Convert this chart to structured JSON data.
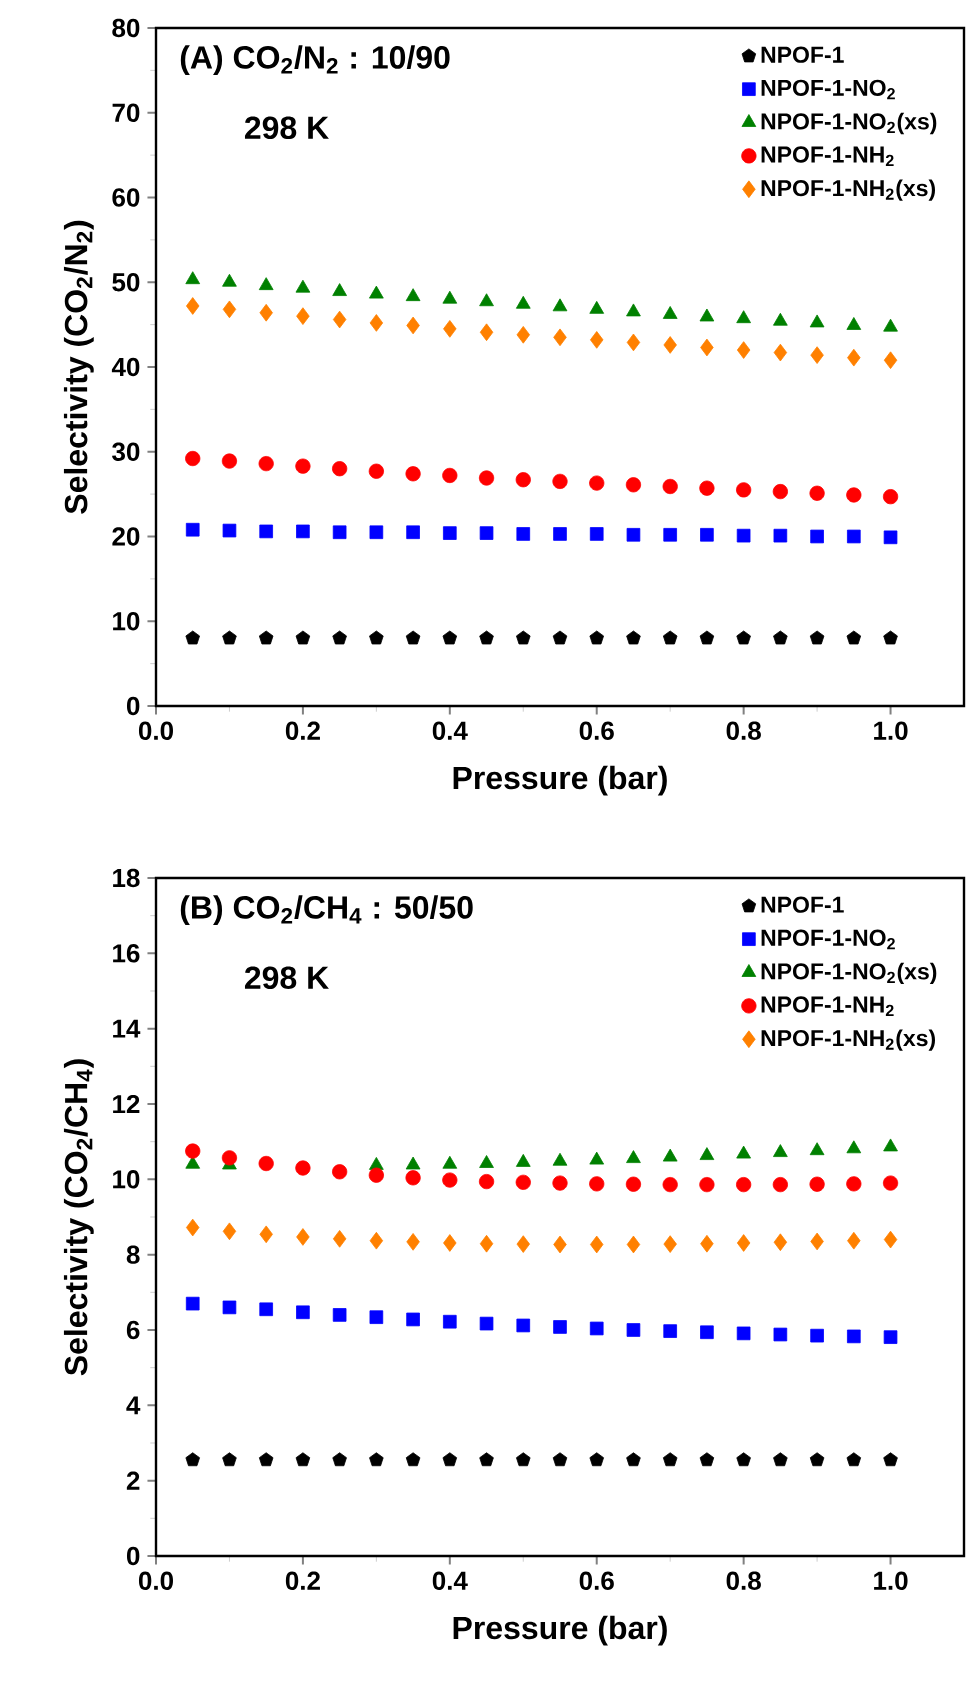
{
  "chart_data": [
    {
      "type": "scatter",
      "title": "(A)  CO$_{2}$/N$_{2}$ : 10/90",
      "annotations": [
        "298 K"
      ],
      "xlabel": "Pressure (bar)",
      "ylabel": "Selectivity (CO$_{2}$/N$_{2}$)",
      "x": [
        0.05,
        0.1,
        0.15,
        0.2,
        0.25,
        0.3,
        0.35,
        0.4,
        0.45,
        0.5,
        0.55,
        0.6,
        0.65,
        0.7,
        0.75,
        0.8,
        0.85,
        0.9,
        0.95,
        1.0
      ],
      "xlim": [
        0,
        1.1
      ],
      "xticks": [
        {
          "value": 0,
          "label": "0.0"
        },
        {
          "value": 0.2,
          "label": "0.2"
        },
        {
          "value": 0.4,
          "label": "0.4"
        },
        {
          "value": 0.6,
          "label": "0.6"
        },
        {
          "value": 0.8,
          "label": "0.8"
        },
        {
          "value": 1,
          "label": "1.0"
        }
      ],
      "ylim": [
        0,
        80
      ],
      "yticks": [
        0,
        10,
        20,
        30,
        40,
        50,
        60,
        70,
        80
      ],
      "legend": "top right",
      "grid": false,
      "series": [
        {
          "name": "NPOF-1",
          "color": "#000000",
          "values": [
            8,
            8,
            8,
            8,
            8,
            8,
            8,
            8,
            8,
            8,
            8,
            8,
            8,
            8,
            8,
            8,
            8,
            8,
            8,
            8
          ]
        },
        {
          "name": "NPOF-1-NO$_{2}$",
          "color": "#0000ff",
          "marker": "square",
          "values": [
            20.8,
            20.7,
            20.6,
            20.6,
            20.5,
            20.5,
            20.5,
            20.4,
            20.4,
            20.3,
            20.3,
            20.3,
            20.2,
            20.2,
            20.2,
            20.1,
            20.1,
            20.0,
            20.0,
            19.9
          ]
        },
        {
          "name": "NPOF-1-NO$_{2}$(xs)",
          "color": "#008000",
          "marker": "triangle",
          "values": [
            50.3,
            50.0,
            49.6,
            49.3,
            48.9,
            48.6,
            48.3,
            48.0,
            47.7,
            47.4,
            47.1,
            46.8,
            46.5,
            46.2,
            45.9,
            45.7,
            45.4,
            45.2,
            44.9,
            44.7
          ]
        },
        {
          "name": "NPOF-1-NH$_{2}$",
          "color": "#ff0000",
          "marker": "circle",
          "values": [
            29.2,
            28.9,
            28.6,
            28.3,
            28.0,
            27.7,
            27.4,
            27.2,
            26.9,
            26.7,
            26.5,
            26.3,
            26.1,
            25.9,
            25.7,
            25.5,
            25.3,
            25.1,
            24.9,
            24.7
          ]
        },
        {
          "name": "NPOF-1-NH$_{2}$(xs)",
          "color": "#ff8000",
          "marker": "diamond",
          "values": [
            47.2,
            46.8,
            46.4,
            46.0,
            45.6,
            45.2,
            44.9,
            44.5,
            44.1,
            43.8,
            43.5,
            43.2,
            42.9,
            42.6,
            42.3,
            42.0,
            41.7,
            41.4,
            41.1,
            40.8
          ]
        }
      ]
    },
    {
      "type": "scatter",
      "title": "(B)  CO$_{2}$/CH$_{4}$ : 50/50",
      "annotations": [
        "298 K"
      ],
      "xlabel": "Pressure (bar)",
      "ylabel": "Selectivity (CO$_{2}$/CH$_{4}$)",
      "x": [
        0.05,
        0.1,
        0.15,
        0.2,
        0.25,
        0.3,
        0.35,
        0.4,
        0.45,
        0.5,
        0.55,
        0.6,
        0.65,
        0.7,
        0.75,
        0.8,
        0.85,
        0.9,
        0.95,
        1.0
      ],
      "xlim": [
        0,
        1.1
      ],
      "xticks": [
        {
          "value": 0,
          "label": "0.0"
        },
        {
          "value": 0.2,
          "label": "0.2"
        },
        {
          "value": 0.4,
          "label": "0.4"
        },
        {
          "value": 0.6,
          "label": "0.6"
        },
        {
          "value": 0.8,
          "label": "0.8"
        },
        {
          "value": 1,
          "label": "1.0"
        }
      ],
      "ylim": [
        0,
        18
      ],
      "yticks": [
        0,
        2,
        4,
        6,
        8,
        10,
        12,
        14,
        16,
        18
      ],
      "legend": "top right",
      "grid": false,
      "series": [
        {
          "name": "NPOF-1",
          "color": "#000000",
          "values": [
            2.55,
            2.55,
            2.55,
            2.55,
            2.55,
            2.55,
            2.55,
            2.55,
            2.55,
            2.55,
            2.55,
            2.55,
            2.55,
            2.55,
            2.55,
            2.55,
            2.55,
            2.55,
            2.55,
            2.55
          ]
        },
        {
          "name": "NPOF-1-NO$_{2}$",
          "color": "#0000ff",
          "marker": "square",
          "values": [
            6.7,
            6.6,
            6.55,
            6.47,
            6.4,
            6.34,
            6.28,
            6.22,
            6.17,
            6.12,
            6.08,
            6.04,
            6.0,
            5.97,
            5.94,
            5.91,
            5.88,
            5.85,
            5.83,
            5.81
          ]
        },
        {
          "name": "NPOF-1-NO$_{2}$(xs)",
          "color": "#008000",
          "marker": "triangle",
          "values": [
            10.4,
            10.38,
            null,
            null,
            null,
            10.37,
            10.38,
            10.4,
            10.42,
            10.45,
            10.48,
            10.51,
            10.55,
            10.59,
            10.63,
            10.67,
            10.71,
            10.76,
            10.81,
            10.86
          ]
        },
        {
          "name": "NPOF-1-NH$_{2}$",
          "color": "#ff0000",
          "marker": "circle",
          "values": [
            10.75,
            10.57,
            10.42,
            10.3,
            10.2,
            10.11,
            10.04,
            9.98,
            9.94,
            9.92,
            9.9,
            9.88,
            9.87,
            9.86,
            9.86,
            9.86,
            9.86,
            9.87,
            9.88,
            9.9
          ]
        },
        {
          "name": "NPOF-1-NH$_{2}$(xs)",
          "color": "#ff8000",
          "marker": "diamond",
          "values": [
            8.72,
            8.62,
            8.54,
            8.47,
            8.42,
            8.37,
            8.34,
            8.31,
            8.29,
            8.28,
            8.27,
            8.27,
            8.27,
            8.28,
            8.29,
            8.31,
            8.33,
            8.35,
            8.37,
            8.4
          ]
        }
      ]
    }
  ]
}
